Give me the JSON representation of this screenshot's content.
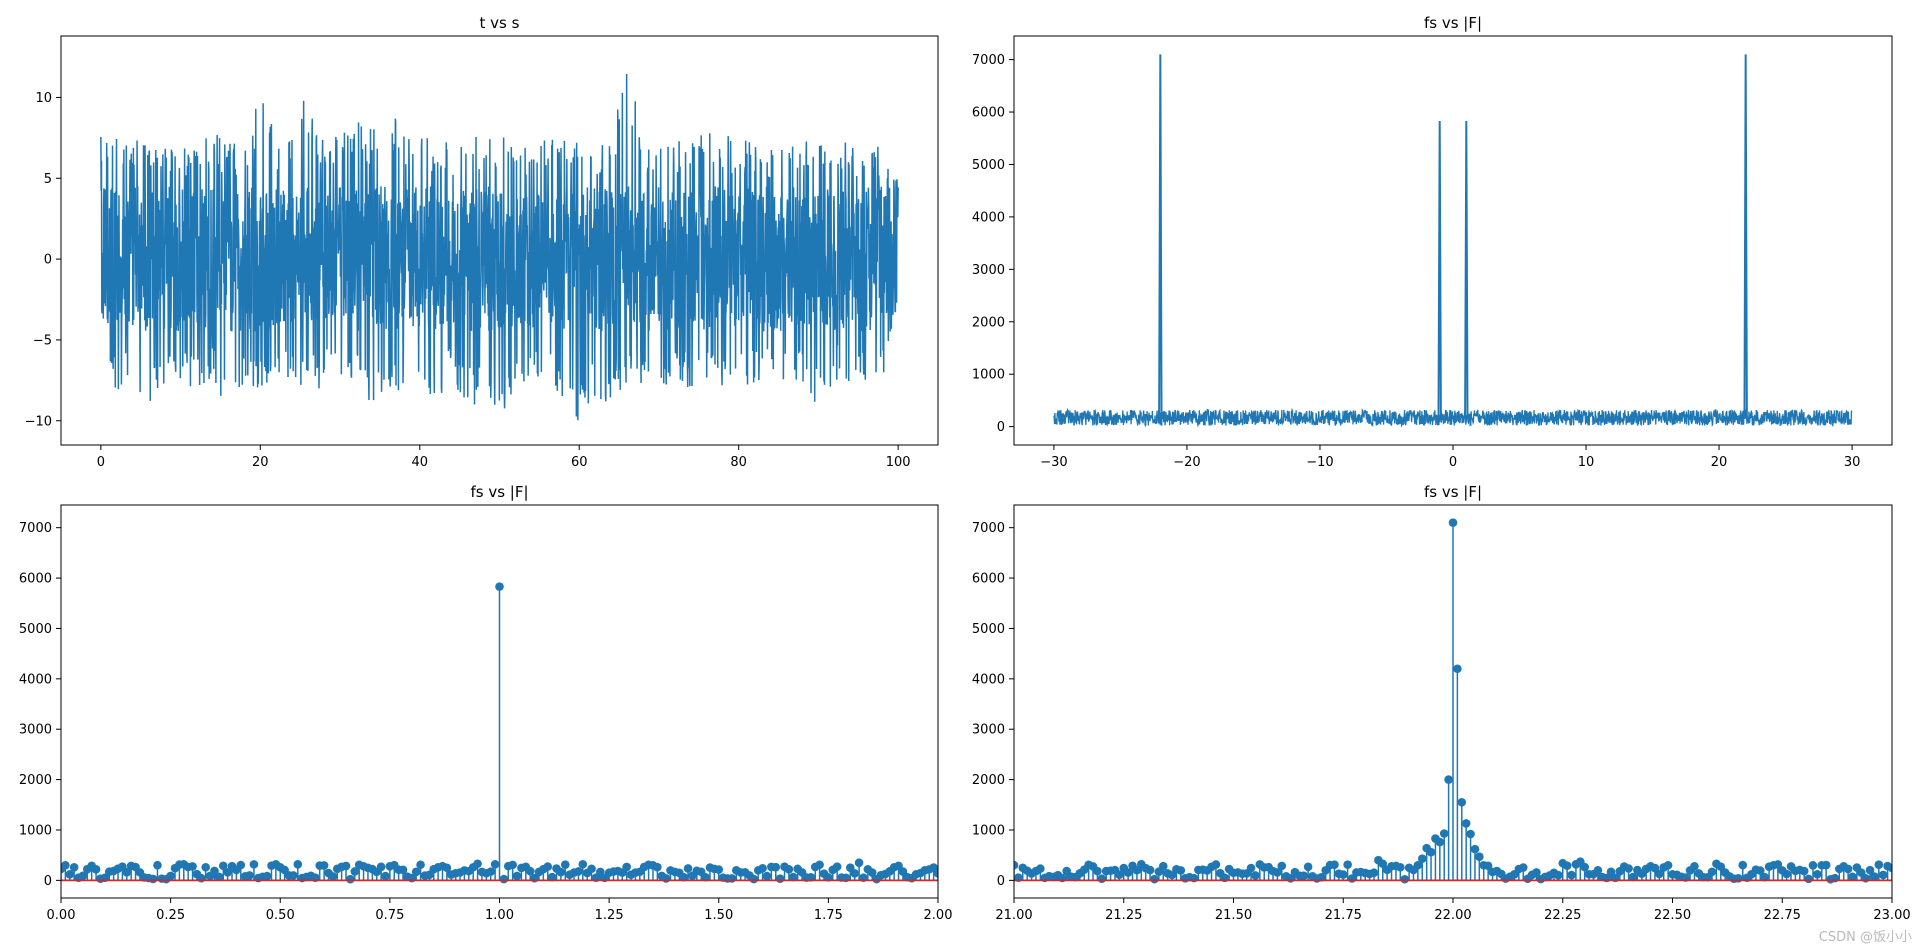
{
  "watermark": "CSDN @饭小小",
  "colors": {
    "line": "#1f77b4",
    "baseline": "#d62728",
    "axis": "#000000"
  },
  "chart_data": [
    {
      "type": "line",
      "title": "t vs s",
      "xlim": [
        -5,
        105
      ],
      "ylim": [
        -11.5,
        13.8
      ],
      "xticks": [
        0,
        20,
        40,
        60,
        80,
        100
      ],
      "xtick_labels": [
        "0",
        "20",
        "40",
        "60",
        "80",
        "100"
      ],
      "yticks": [
        -10,
        -5,
        0,
        5,
        10
      ],
      "ytick_labels": [
        "−10",
        "−5",
        "0",
        "5",
        "10"
      ],
      "x": [
        0,
        2,
        4,
        6,
        8,
        10,
        12,
        14,
        16,
        18,
        20,
        22,
        24,
        26,
        28,
        30,
        32,
        34,
        36,
        38,
        40,
        42,
        44,
        46,
        48,
        50,
        52,
        54,
        56,
        58,
        60,
        62,
        64,
        66,
        68,
        70,
        72,
        74,
        76,
        78,
        80,
        82,
        84,
        86,
        88,
        90,
        92,
        94,
        96,
        98,
        100
      ],
      "y_max": [
        8.3,
        7.6,
        7.2,
        7.8,
        7.7,
        7.3,
        7.5,
        7.9,
        7.4,
        7.1,
        10.2,
        7.6,
        8.2,
        10.7,
        7.8,
        7.6,
        9.3,
        8.0,
        9.8,
        7.6,
        8.0,
        7.4,
        7.2,
        7.8,
        7.7,
        7.9,
        7.5,
        7.0,
        7.8,
        7.5,
        7.4,
        7.3,
        7.6,
        12.7,
        7.2,
        7.3,
        7.4,
        7.4,
        7.8,
        7.8,
        7.3,
        7.5,
        7.0,
        7.1,
        7.3,
        7.4,
        7.7,
        7.4,
        7.1,
        7.0,
        4.9
      ],
      "y_min": [
        -3.0,
        -8.8,
        -7.5,
        -10.0,
        -7.6,
        -7.8,
        -8.5,
        -7.9,
        -9.0,
        -8.0,
        -8.3,
        -7.6,
        -8.2,
        -8.5,
        -7.8,
        -8.0,
        -8.2,
        -9.0,
        -7.8,
        -8.5,
        -8.3,
        -8.6,
        -7.8,
        -9.6,
        -8.2,
        -10.9,
        -9.0,
        -7.6,
        -8.0,
        -9.7,
        -10.2,
        -8.8,
        -8.8,
        -7.8,
        -8.2,
        -8.3,
        -7.6,
        -8.0,
        -8.0,
        -8.5,
        -7.5,
        -8.0,
        -7.6,
        -7.6,
        -7.8,
        -9.6,
        -7.5,
        -8.0,
        -7.6,
        -8.0,
        -2.8
      ]
    },
    {
      "type": "line",
      "title": "fs vs |F|",
      "xlim": [
        -33,
        33
      ],
      "ylim": [
        -350,
        7450
      ],
      "xticks": [
        -30,
        -20,
        -10,
        0,
        10,
        20,
        30
      ],
      "xtick_labels": [
        "−30",
        "−20",
        "−10",
        "0",
        "10",
        "20",
        "30"
      ],
      "yticks": [
        0,
        1000,
        2000,
        3000,
        4000,
        5000,
        6000,
        7000
      ],
      "ytick_labels": [
        "0",
        "1000",
        "2000",
        "3000",
        "4000",
        "5000",
        "6000",
        "7000"
      ],
      "noise_range": [
        -30,
        30
      ],
      "noise_band": [
        20,
        320
      ],
      "peaks": [
        {
          "x": -22,
          "y": 7100
        },
        {
          "x": -1,
          "y": 5830
        },
        {
          "x": 1,
          "y": 5830
        },
        {
          "x": 22,
          "y": 7100
        }
      ]
    },
    {
      "type": "stem",
      "title": "fs vs |F|",
      "xlim": [
        0,
        2
      ],
      "ylim": [
        -350,
        7450
      ],
      "xticks": [
        0,
        0.25,
        0.5,
        0.75,
        1.0,
        1.25,
        1.5,
        1.75,
        2.0
      ],
      "xtick_labels": [
        "0.00",
        "0.25",
        "0.50",
        "0.75",
        "1.00",
        "1.25",
        "1.50",
        "1.75",
        "2.00"
      ],
      "yticks": [
        0,
        1000,
        2000,
        3000,
        4000,
        5000,
        6000,
        7000
      ],
      "ytick_labels": [
        "0",
        "1000",
        "2000",
        "3000",
        "4000",
        "5000",
        "6000",
        "7000"
      ],
      "x_step": 0.01,
      "baseline": 0,
      "noise_band": [
        20,
        320
      ],
      "peaks": [
        {
          "x": 1.0,
          "y": 5830
        },
        {
          "x": 0.01,
          "y": 300
        },
        {
          "x": 0.33,
          "y": 260
        },
        {
          "x": 0.69,
          "y": 280
        },
        {
          "x": 0.82,
          "y": 310
        },
        {
          "x": 0.95,
          "y": 330
        },
        {
          "x": 1.19,
          "y": 320
        },
        {
          "x": 1.34,
          "y": 310
        },
        {
          "x": 1.82,
          "y": 350
        },
        {
          "x": 1.91,
          "y": 290
        }
      ]
    },
    {
      "type": "stem",
      "title": "fs vs |F|",
      "xlim": [
        21,
        23
      ],
      "ylim": [
        -350,
        7450
      ],
      "xticks": [
        21.0,
        21.25,
        21.5,
        21.75,
        22.0,
        22.25,
        22.5,
        22.75,
        23.0
      ],
      "xtick_labels": [
        "21.00",
        "21.25",
        "21.50",
        "21.75",
        "22.00",
        "22.25",
        "22.50",
        "22.75",
        "23.00"
      ],
      "yticks": [
        0,
        1000,
        2000,
        3000,
        4000,
        5000,
        6000,
        7000
      ],
      "ytick_labels": [
        "0",
        "1000",
        "2000",
        "3000",
        "4000",
        "5000",
        "6000",
        "7000"
      ],
      "x_step": 0.01,
      "baseline": 0,
      "noise_band": [
        20,
        320
      ],
      "peaks": [
        {
          "x": 21.83,
          "y": 400
        },
        {
          "x": 21.84,
          "y": 330
        },
        {
          "x": 21.86,
          "y": 280
        },
        {
          "x": 21.88,
          "y": 260
        },
        {
          "x": 21.9,
          "y": 250
        },
        {
          "x": 21.92,
          "y": 300
        },
        {
          "x": 21.93,
          "y": 430
        },
        {
          "x": 21.94,
          "y": 640
        },
        {
          "x": 21.95,
          "y": 560
        },
        {
          "x": 21.96,
          "y": 830
        },
        {
          "x": 21.97,
          "y": 760
        },
        {
          "x": 21.98,
          "y": 930
        },
        {
          "x": 21.99,
          "y": 2000
        },
        {
          "x": 22.0,
          "y": 7100
        },
        {
          "x": 22.01,
          "y": 4200
        },
        {
          "x": 22.02,
          "y": 1550
        },
        {
          "x": 22.03,
          "y": 1130
        },
        {
          "x": 22.04,
          "y": 920
        },
        {
          "x": 22.05,
          "y": 620
        },
        {
          "x": 22.06,
          "y": 470
        },
        {
          "x": 22.07,
          "y": 300
        },
        {
          "x": 22.08,
          "y": 290
        },
        {
          "x": 22.25,
          "y": 340
        },
        {
          "x": 22.29,
          "y": 370
        },
        {
          "x": 22.6,
          "y": 330
        },
        {
          "x": 22.73,
          "y": 300
        }
      ]
    }
  ]
}
